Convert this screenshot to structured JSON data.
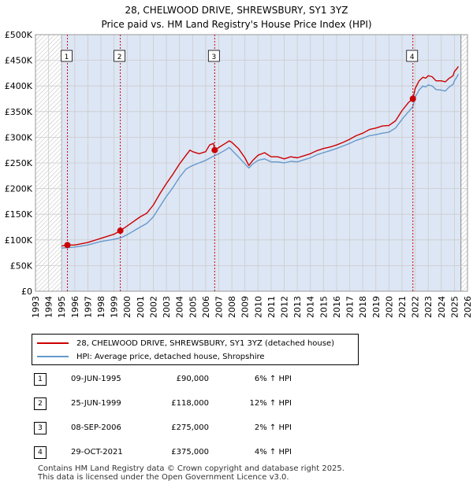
{
  "title_line1": "28, CHELWOOD DRIVE, SHREWSBURY, SY1 3YZ",
  "title_line2": "Price paid vs. HM Land Registry's House Price Index (HPI)",
  "colors": {
    "property": "#cc0000",
    "hpi": "#6699cc",
    "shade": "#dde6f4",
    "grid": "#cccccc"
  },
  "chart_data": {
    "type": "line",
    "title": "Price paid vs. HM Land Registry's House Price Index (HPI)",
    "xlabel": "",
    "ylabel": "",
    "xlim": [
      1993,
      2026
    ],
    "ylim": [
      0,
      500000
    ],
    "y_ticks": [
      0,
      50000,
      100000,
      150000,
      200000,
      250000,
      300000,
      350000,
      400000,
      450000,
      500000
    ],
    "y_tick_labels": [
      "£0",
      "£50K",
      "£100K",
      "£150K",
      "£200K",
      "£250K",
      "£300K",
      "£350K",
      "£400K",
      "£450K",
      "£500K"
    ],
    "x_ticks": [
      1993,
      1994,
      1995,
      1996,
      1997,
      1998,
      1999,
      2000,
      2001,
      2002,
      2003,
      2004,
      2005,
      2006,
      2007,
      2008,
      2009,
      2010,
      2011,
      2012,
      2013,
      2014,
      2015,
      2016,
      2017,
      2018,
      2019,
      2020,
      2021,
      2022,
      2023,
      2024,
      2025,
      2026
    ],
    "data_range": [
      1995.0,
      2025.5
    ],
    "series": [
      {
        "name": "28, CHELWOOD DRIVE, SHREWSBURY, SY1 3YZ (detached house)",
        "color": "#cc0000",
        "points": [
          [
            1995.0,
            88000
          ],
          [
            1995.44,
            90000
          ],
          [
            1996.0,
            90000
          ],
          [
            1997.0,
            95000
          ],
          [
            1998.0,
            103000
          ],
          [
            1999.0,
            111000
          ],
          [
            1999.48,
            118000
          ],
          [
            2000.0,
            127000
          ],
          [
            2001.0,
            145000
          ],
          [
            2001.5,
            152000
          ],
          [
            2002.0,
            168000
          ],
          [
            2002.5,
            190000
          ],
          [
            2003.0,
            210000
          ],
          [
            2003.5,
            228000
          ],
          [
            2004.0,
            248000
          ],
          [
            2004.5,
            265000
          ],
          [
            2004.8,
            275000
          ],
          [
            2005.0,
            272000
          ],
          [
            2005.5,
            268000
          ],
          [
            2006.0,
            272000
          ],
          [
            2006.3,
            285000
          ],
          [
            2006.6,
            288000
          ],
          [
            2006.69,
            275000
          ],
          [
            2007.0,
            280000
          ],
          [
            2007.5,
            288000
          ],
          [
            2007.8,
            293000
          ],
          [
            2008.0,
            290000
          ],
          [
            2008.5,
            278000
          ],
          [
            2009.0,
            260000
          ],
          [
            2009.3,
            245000
          ],
          [
            2009.6,
            255000
          ],
          [
            2010.0,
            265000
          ],
          [
            2010.5,
            270000
          ],
          [
            2011.0,
            262000
          ],
          [
            2011.5,
            262000
          ],
          [
            2012.0,
            258000
          ],
          [
            2012.5,
            262000
          ],
          [
            2013.0,
            260000
          ],
          [
            2013.5,
            264000
          ],
          [
            2014.0,
            268000
          ],
          [
            2014.5,
            274000
          ],
          [
            2015.0,
            278000
          ],
          [
            2015.5,
            281000
          ],
          [
            2016.0,
            285000
          ],
          [
            2016.5,
            290000
          ],
          [
            2017.0,
            296000
          ],
          [
            2017.5,
            303000
          ],
          [
            2018.0,
            308000
          ],
          [
            2018.5,
            315000
          ],
          [
            2019.0,
            318000
          ],
          [
            2019.5,
            322000
          ],
          [
            2020.0,
            323000
          ],
          [
            2020.5,
            332000
          ],
          [
            2021.0,
            352000
          ],
          [
            2021.5,
            368000
          ],
          [
            2021.83,
            375000
          ],
          [
            2022.0,
            395000
          ],
          [
            2022.3,
            410000
          ],
          [
            2022.6,
            417000
          ],
          [
            2022.8,
            415000
          ],
          [
            2023.0,
            420000
          ],
          [
            2023.3,
            418000
          ],
          [
            2023.6,
            410000
          ],
          [
            2024.0,
            410000
          ],
          [
            2024.3,
            408000
          ],
          [
            2024.6,
            415000
          ],
          [
            2024.9,
            420000
          ],
          [
            2025.0,
            428000
          ],
          [
            2025.2,
            434000
          ],
          [
            2025.3,
            438000
          ]
        ]
      },
      {
        "name": "HPI: Average price, detached house, Shropshire",
        "color": "#6699cc",
        "points": [
          [
            1995.0,
            84000
          ],
          [
            1995.5,
            85000
          ],
          [
            1996.0,
            86000
          ],
          [
            1997.0,
            90000
          ],
          [
            1998.0,
            97000
          ],
          [
            1999.0,
            101000
          ],
          [
            1999.5,
            104000
          ],
          [
            2000.0,
            110000
          ],
          [
            2001.0,
            125000
          ],
          [
            2001.5,
            132000
          ],
          [
            2002.0,
            145000
          ],
          [
            2002.5,
            165000
          ],
          [
            2003.0,
            185000
          ],
          [
            2003.5,
            202000
          ],
          [
            2004.0,
            222000
          ],
          [
            2004.5,
            238000
          ],
          [
            2005.0,
            245000
          ],
          [
            2005.5,
            250000
          ],
          [
            2006.0,
            255000
          ],
          [
            2006.5,
            262000
          ],
          [
            2007.0,
            268000
          ],
          [
            2007.5,
            275000
          ],
          [
            2007.8,
            280000
          ],
          [
            2008.0,
            275000
          ],
          [
            2008.5,
            262000
          ],
          [
            2009.0,
            248000
          ],
          [
            2009.3,
            240000
          ],
          [
            2009.6,
            248000
          ],
          [
            2010.0,
            255000
          ],
          [
            2010.5,
            258000
          ],
          [
            2011.0,
            252000
          ],
          [
            2011.5,
            252000
          ],
          [
            2012.0,
            250000
          ],
          [
            2012.5,
            253000
          ],
          [
            2013.0,
            252000
          ],
          [
            2013.5,
            256000
          ],
          [
            2014.0,
            260000
          ],
          [
            2014.5,
            266000
          ],
          [
            2015.0,
            270000
          ],
          [
            2015.5,
            274000
          ],
          [
            2016.0,
            278000
          ],
          [
            2016.5,
            283000
          ],
          [
            2017.0,
            288000
          ],
          [
            2017.5,
            294000
          ],
          [
            2018.0,
            298000
          ],
          [
            2018.5,
            303000
          ],
          [
            2019.0,
            305000
          ],
          [
            2019.5,
            308000
          ],
          [
            2020.0,
            310000
          ],
          [
            2020.5,
            318000
          ],
          [
            2021.0,
            335000
          ],
          [
            2021.5,
            350000
          ],
          [
            2021.83,
            360000
          ],
          [
            2022.0,
            378000
          ],
          [
            2022.3,
            392000
          ],
          [
            2022.6,
            400000
          ],
          [
            2022.8,
            398000
          ],
          [
            2023.0,
            402000
          ],
          [
            2023.3,
            400000
          ],
          [
            2023.6,
            393000
          ],
          [
            2024.0,
            392000
          ],
          [
            2024.3,
            390000
          ],
          [
            2024.6,
            398000
          ],
          [
            2024.9,
            403000
          ],
          [
            2025.0,
            410000
          ],
          [
            2025.2,
            418000
          ],
          [
            2025.3,
            423000
          ]
        ]
      }
    ],
    "transactions": [
      {
        "label": "1",
        "x": 1995.44,
        "y": 90000
      },
      {
        "label": "2",
        "x": 1999.48,
        "y": 118000
      },
      {
        "label": "3",
        "x": 2006.69,
        "y": 275000
      },
      {
        "label": "4",
        "x": 2021.83,
        "y": 375000
      }
    ]
  },
  "legend": {
    "property_label": "28, CHELWOOD DRIVE, SHREWSBURY, SY1 3YZ (detached house)",
    "hpi_label": "HPI: Average price, detached house, Shropshire"
  },
  "sales": [
    {
      "num": "1",
      "date": "09-JUN-1995",
      "price": "£90,000",
      "hpi": "6% ↑ HPI"
    },
    {
      "num": "2",
      "date": "25-JUN-1999",
      "price": "£118,000",
      "hpi": "12% ↑ HPI"
    },
    {
      "num": "3",
      "date": "08-SEP-2006",
      "price": "£275,000",
      "hpi": "2% ↑ HPI"
    },
    {
      "num": "4",
      "date": "29-OCT-2021",
      "price": "£375,000",
      "hpi": "4% ↑ HPI"
    }
  ],
  "footer": {
    "line1": "Contains HM Land Registry data © Crown copyright and database right 2025.",
    "line2": "This data is licensed under the Open Government Licence v3.0."
  }
}
